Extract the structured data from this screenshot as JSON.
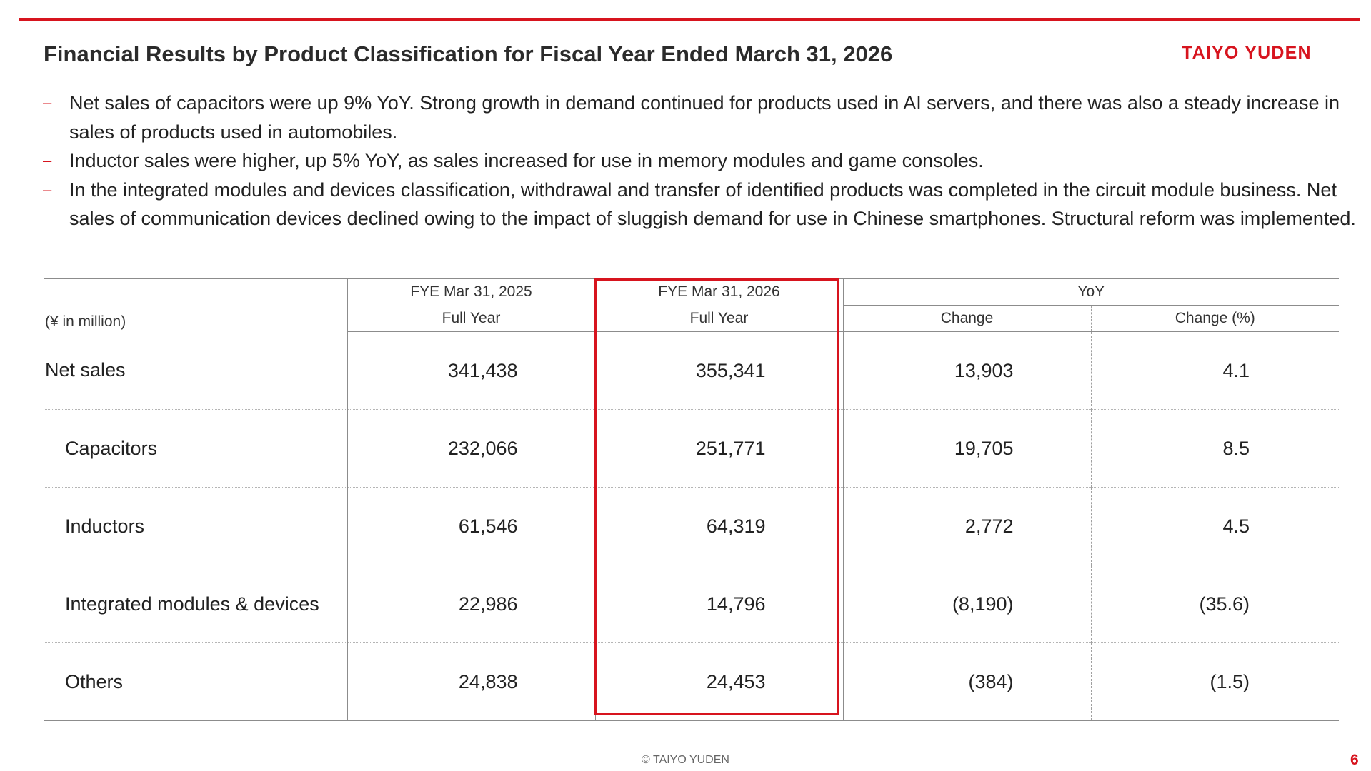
{
  "slide": {
    "title": "Financial Results by Product Classification for Fiscal Year Ended March 31, 2026",
    "logo_text": "TAIYO YUDEN",
    "accent_color": "#d7141e",
    "bullet_marker": "–",
    "bullets": [
      "Net sales of capacitors were up 9% YoY. Strong growth in demand continued for products used in AI servers, and there was also a steady increase in sales of products used in automobiles.",
      "Inductor sales were higher, up 5% YoY, as sales increased for use in memory modules and game consoles.",
      "In the integrated modules and devices classification, withdrawal and transfer of identified products was completed in the circuit module business. Net sales of communication devices declined owing to the impact of sluggish demand for use in Chinese smartphones. Structural reform was implemented."
    ],
    "footer": "© TAIYO YUDEN",
    "page_number": "6"
  },
  "table": {
    "unit_label": "(¥ in million)",
    "headers": {
      "prev_period": "FYE Mar 31, 2025",
      "prev_sub": "Full Year",
      "curr_period": "FYE Mar 31, 2026",
      "curr_sub": "Full Year",
      "yoy": "YoY",
      "change": "Change",
      "change_pct": "Change (%)"
    },
    "rows": [
      {
        "label": "Net sales",
        "prev": "341,438",
        "curr": "355,341",
        "change": "13,903",
        "change_pct": "4.1"
      },
      {
        "label": "Capacitors",
        "prev": "232,066",
        "curr": "251,771",
        "change": "19,705",
        "change_pct": "8.5"
      },
      {
        "label": "Inductors",
        "prev": "61,546",
        "curr": "64,319",
        "change": "2,772",
        "change_pct": "4.5"
      },
      {
        "label": "Integrated modules & devices",
        "prev": "22,986",
        "curr": "14,796",
        "change": "(8,190)",
        "change_pct": "(35.6)"
      },
      {
        "label": "Others",
        "prev": "24,838",
        "curr": "24,453",
        "change": "(384)",
        "change_pct": "(1.5)"
      }
    ]
  }
}
